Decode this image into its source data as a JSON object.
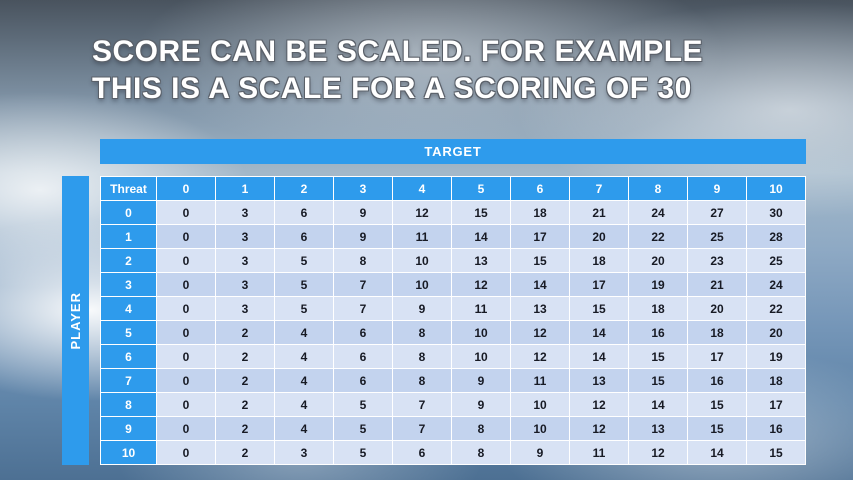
{
  "title": {
    "line1": "SCORE CAN BE SCALED. FOR EXAMPLE",
    "line2": "THIS IS A SCALE FOR A SCORING OF 30"
  },
  "table": {
    "target_label": "TARGET",
    "player_label": "PLAYER",
    "threat_label": "Threat",
    "col_headers": [
      "0",
      "1",
      "2",
      "3",
      "4",
      "5",
      "6",
      "7",
      "8",
      "9",
      "10"
    ],
    "row_headers": [
      "0",
      "1",
      "2",
      "3",
      "4",
      "5",
      "6",
      "7",
      "8",
      "9",
      "10"
    ],
    "rows": [
      [
        0,
        3,
        6,
        9,
        12,
        15,
        18,
        21,
        24,
        27,
        30
      ],
      [
        0,
        3,
        6,
        9,
        11,
        14,
        17,
        20,
        22,
        25,
        28
      ],
      [
        0,
        3,
        5,
        8,
        10,
        13,
        15,
        18,
        20,
        23,
        25
      ],
      [
        0,
        3,
        5,
        7,
        10,
        12,
        14,
        17,
        19,
        21,
        24
      ],
      [
        0,
        3,
        5,
        7,
        9,
        11,
        13,
        15,
        18,
        20,
        22
      ],
      [
        0,
        2,
        4,
        6,
        8,
        10,
        12,
        14,
        16,
        18,
        20
      ],
      [
        0,
        2,
        4,
        6,
        8,
        10,
        12,
        14,
        15,
        17,
        19
      ],
      [
        0,
        2,
        4,
        6,
        8,
        9,
        11,
        13,
        15,
        16,
        18
      ],
      [
        0,
        2,
        4,
        5,
        7,
        9,
        10,
        12,
        14,
        15,
        17
      ],
      [
        0,
        2,
        4,
        5,
        7,
        8,
        10,
        12,
        13,
        15,
        16
      ],
      [
        0,
        2,
        3,
        5,
        6,
        8,
        9,
        11,
        12,
        14,
        15
      ]
    ]
  },
  "colors": {
    "accent": "#2e9bec",
    "band_light": "#d8e2f4",
    "band_dark": "#c3d3ee",
    "cell_text": "#171a24"
  }
}
